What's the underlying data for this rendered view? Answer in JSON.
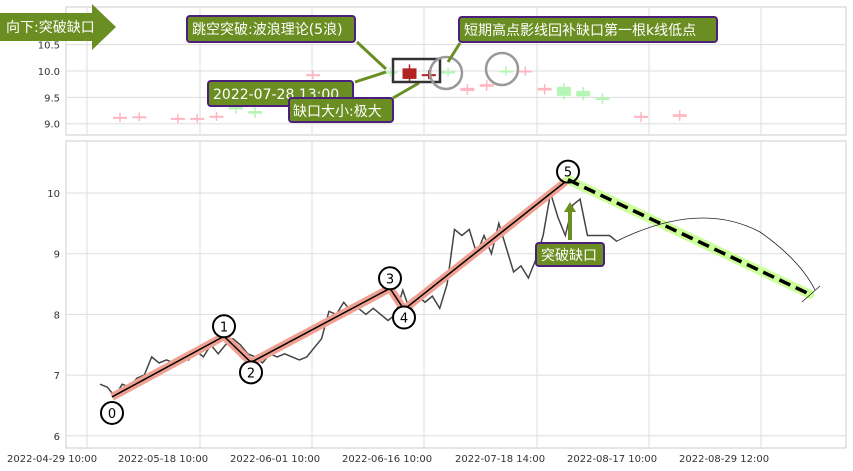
{
  "colors": {
    "annotation_bg": "#6b8e23",
    "annotation_border": "#4b1f7a",
    "wave": "#f0a090",
    "projection": "#ccff99",
    "up_candle": "#ffb6c1",
    "down_candle": "#b5f5b5",
    "gap_candle": "#b22222"
  },
  "chart_data": [
    {
      "type": "candlestick",
      "yticks": [
        "10.5",
        "10.0",
        "9.5",
        "9.0"
      ],
      "ylim": [
        8.8,
        11.2
      ],
      "grid": true,
      "candles": [
        {
          "i": 0,
          "open": 9.11,
          "close": 9.13,
          "color": "up"
        },
        {
          "i": 1,
          "open": 9.12,
          "close": 9.14,
          "color": "up"
        },
        {
          "i": 3,
          "open": 9.09,
          "close": 9.11,
          "color": "up"
        },
        {
          "i": 4,
          "open": 9.09,
          "close": 9.11,
          "color": "up"
        },
        {
          "i": 5,
          "open": 9.13,
          "close": 9.15,
          "color": "up"
        },
        {
          "i": 6,
          "open": 9.32,
          "close": 9.27,
          "color": "down"
        },
        {
          "i": 7,
          "open": 9.24,
          "close": 9.19,
          "color": "down"
        },
        {
          "i": 10,
          "open": 9.92,
          "close": 9.94,
          "color": "up"
        },
        {
          "i": 14,
          "open": 9.99,
          "close": 9.97,
          "color": "down"
        },
        {
          "i": 15,
          "open": 9.85,
          "close": 10.05,
          "color": "gap"
        },
        {
          "i": 16,
          "open": 9.92,
          "close": 9.94,
          "color": "gap"
        },
        {
          "i": 17,
          "open": 9.99,
          "close": 9.97,
          "color": "down"
        },
        {
          "i": 18,
          "open": 9.62,
          "close": 9.68,
          "color": "up"
        },
        {
          "i": 19,
          "open": 9.7,
          "close": 9.75,
          "color": "up"
        },
        {
          "i": 20,
          "open": 10.01,
          "close": 9.99,
          "color": "down"
        },
        {
          "i": 21,
          "open": 9.99,
          "close": 10.01,
          "color": "up"
        },
        {
          "i": 22,
          "open": 9.63,
          "close": 9.68,
          "color": "up"
        },
        {
          "i": 23,
          "open": 9.7,
          "close": 9.53,
          "color": "down"
        },
        {
          "i": 24,
          "open": 9.62,
          "close": 9.52,
          "color": "down"
        },
        {
          "i": 25,
          "open": 9.5,
          "close": 9.45,
          "color": "down"
        },
        {
          "i": 27,
          "open": 9.11,
          "close": 9.15,
          "color": "up"
        },
        {
          "i": 29,
          "open": 9.13,
          "close": 9.18,
          "color": "up"
        }
      ]
    },
    {
      "type": "line",
      "xticks": [
        "2022-04-29 10:00",
        "2022-05-18 10:00",
        "2022-06-01 10:00",
        "2022-06-16 10:00",
        "2022-07-18 14:00",
        "2022-08-17 10:00",
        "2022-08-29 12:00"
      ],
      "yticks": [
        "10",
        "9",
        "8",
        "7",
        "6"
      ],
      "ylim": [
        5.9,
        10.85
      ],
      "grid": true,
      "price": [
        6.85,
        6.8,
        6.65,
        6.85,
        6.8,
        6.95,
        7.0,
        7.3,
        7.2,
        7.25,
        7.2,
        7.3,
        7.25,
        7.4,
        7.3,
        7.5,
        7.35,
        7.5,
        7.6,
        7.5,
        7.35,
        7.3,
        7.2,
        7.35,
        7.3,
        7.35,
        7.3,
        7.25,
        7.3,
        7.45,
        7.6,
        8.05,
        8.0,
        8.2,
        8.05,
        8.1,
        8.0,
        8.1,
        8.0,
        7.9,
        8.0,
        8.4,
        8.05,
        8.3,
        8.2,
        8.3,
        8.1,
        8.5,
        9.4,
        9.3,
        9.4,
        9.0,
        9.3,
        9.0,
        9.5,
        9.1,
        8.7,
        8.8,
        8.6,
        8.9,
        9.3,
        10.0,
        9.6,
        9.3,
        9.8,
        9.9,
        9.3,
        9.3,
        9.3,
        9.3,
        9.2
      ],
      "waves": [
        {
          "label": "0",
          "value": 6.64
        },
        {
          "label": "1",
          "value": 7.64
        },
        {
          "label": "2",
          "value": 7.21
        },
        {
          "label": "3",
          "value": 8.43
        },
        {
          "label": "4",
          "value": 8.08
        },
        {
          "label": "5",
          "value": 10.22
        }
      ],
      "projection_end": 8.33
    }
  ],
  "annotations": {
    "direction": "向下:突破缺口",
    "gap_theory": "跳空突破:波浪理论(5浪)",
    "gap_time": "2022-07-28 13:00",
    "gap_size": "缺口大小:极大",
    "fill_note": "短期高点影线回补缺口第一根k线低点",
    "breakout": "突破缺口"
  }
}
